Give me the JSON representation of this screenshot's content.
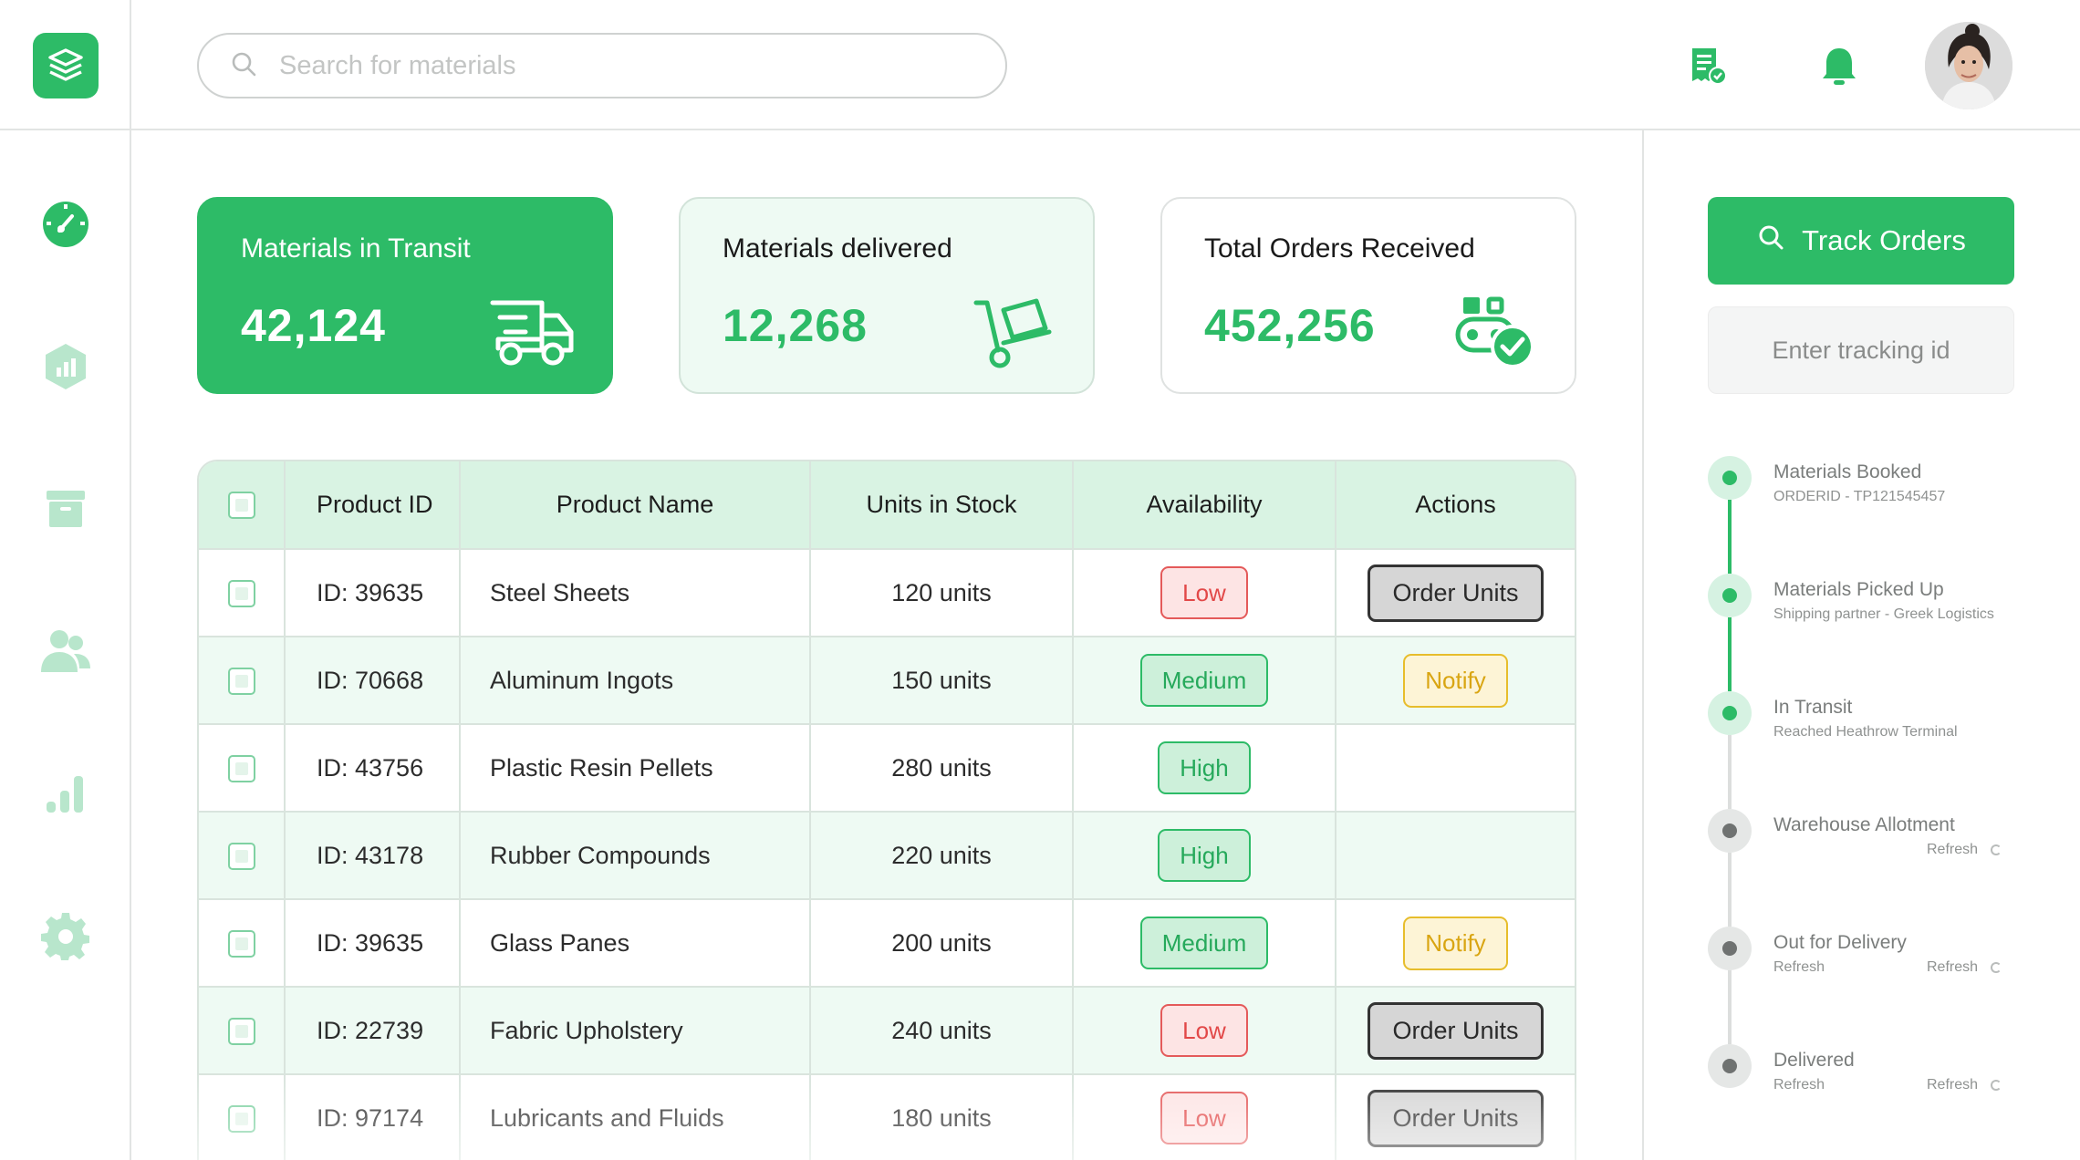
{
  "header": {
    "search_placeholder": "Search for materials",
    "icons": [
      "logo-icon",
      "search-icon",
      "invoice-check-icon",
      "bell-icon",
      "avatar"
    ]
  },
  "sidebar": {
    "items": [
      {
        "icon": "dashboard-gauge-icon",
        "active": true
      },
      {
        "icon": "analytics-hexagon-icon",
        "active": false
      },
      {
        "icon": "archive-box-icon",
        "active": false
      },
      {
        "icon": "users-icon",
        "active": false
      },
      {
        "icon": "bar-chart-icon",
        "active": false
      },
      {
        "icon": "settings-gear-icon",
        "active": false
      }
    ]
  },
  "cards": [
    {
      "title": "Materials in Transit",
      "value": "42,124",
      "icon": "truck-icon"
    },
    {
      "title": "Materials delivered",
      "value": "12,268",
      "icon": "hand-truck-icon"
    },
    {
      "title": "Total Orders Received",
      "value": "452,256",
      "icon": "conveyor-check-icon"
    }
  ],
  "table": {
    "headers": [
      "Product ID",
      "Product Name",
      "Units in Stock",
      "Availability",
      "Actions"
    ],
    "rows": [
      {
        "id": "ID: 39635",
        "name": "Steel Sheets",
        "units": "120 units",
        "availability": "Low",
        "action": "Order Units"
      },
      {
        "id": "ID: 70668",
        "name": "Aluminum Ingots",
        "units": "150 units",
        "availability": "Medium",
        "action": "Notify"
      },
      {
        "id": "ID: 43756",
        "name": "Plastic Resin Pellets",
        "units": "280 units",
        "availability": "High",
        "action": ""
      },
      {
        "id": "ID: 43178",
        "name": "Rubber Compounds",
        "units": "220 units",
        "availability": "High",
        "action": ""
      },
      {
        "id": "ID: 39635",
        "name": "Glass Panes",
        "units": "200 units",
        "availability": "Medium",
        "action": "Notify"
      },
      {
        "id": "ID: 22739",
        "name": "Fabric Upholstery",
        "units": "240 units",
        "availability": "Low",
        "action": "Order Units"
      },
      {
        "id": "ID: 97174",
        "name": "Lubricants and Fluids",
        "units": "180 units",
        "availability": "Low",
        "action": "Order Units"
      }
    ]
  },
  "tracking": {
    "button_label": "Track Orders",
    "input_placeholder": "Enter tracking id",
    "steps": [
      {
        "title": "Materials Booked",
        "sub": "ORDERID - TP121545457",
        "refresh": "",
        "status": "done"
      },
      {
        "title": "Materials Picked Up",
        "sub": "Shipping partner - Greek Logistics",
        "refresh": "",
        "status": "done"
      },
      {
        "title": "In Transit",
        "sub": "Reached Heathrow Terminal",
        "refresh": "",
        "status": "done"
      },
      {
        "title": "Warehouse Allotment",
        "sub": "",
        "refresh": "Refresh",
        "status": "pending"
      },
      {
        "title": "Out for Delivery",
        "sub": "Refresh",
        "refresh": "Refresh",
        "status": "pending"
      },
      {
        "title": "Delivered",
        "sub": "Refresh",
        "refresh": "Refresh",
        "status": "pending"
      }
    ]
  },
  "colors": {
    "accent": "#2dbb67",
    "accent_light": "#eefaf3",
    "header_row": "#d9f3e3",
    "low": "#e24848",
    "notify": "#d9a512"
  }
}
